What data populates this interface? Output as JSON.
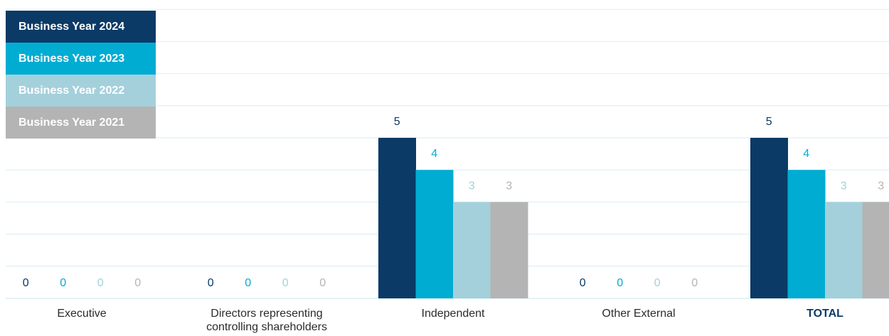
{
  "chart_data": {
    "type": "bar",
    "categories": [
      "Executive",
      "Directors representing controlling shareholders",
      "Independent",
      "Other External",
      "TOTAL"
    ],
    "category_label_lines": [
      [
        "Executive"
      ],
      [
        "Directors representing",
        "controlling shareholders"
      ],
      [
        "Independent"
      ],
      [
        "Other External"
      ],
      [
        "TOTAL"
      ]
    ],
    "series": [
      {
        "name": "Business Year 2024",
        "values": [
          0,
          0,
          5,
          0,
          5
        ],
        "color": "#0b3a66"
      },
      {
        "name": "Business Year 2023",
        "values": [
          0,
          0,
          4,
          0,
          4
        ],
        "color": "#00acd2"
      },
      {
        "name": "Business Year 2022",
        "values": [
          0,
          0,
          3,
          0,
          3
        ],
        "color": "#a4d0dc"
      },
      {
        "name": "Business Year 2021",
        "values": [
          0,
          0,
          3,
          0,
          3
        ],
        "color": "#b4b4b4"
      }
    ],
    "ylim": [
      0,
      9
    ],
    "grid": true,
    "legend": "top-left",
    "bold_categories": [
      "TOTAL"
    ]
  }
}
